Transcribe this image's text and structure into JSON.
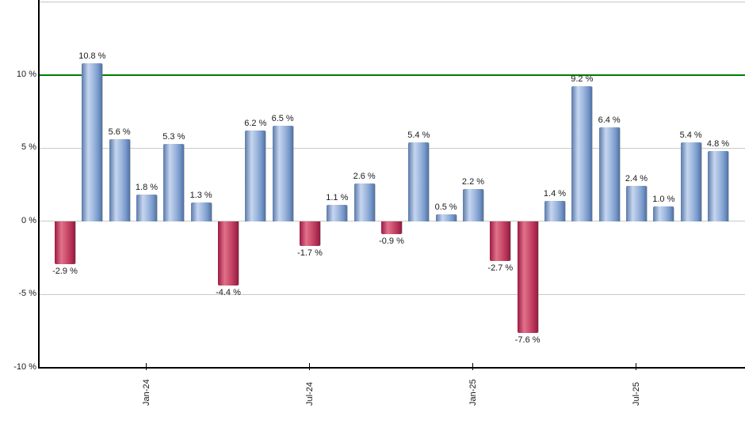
{
  "chart_data": {
    "type": "bar",
    "title": "",
    "unit": "%",
    "values": [
      -2.9,
      10.8,
      5.6,
      1.8,
      5.3,
      1.3,
      -4.4,
      6.2,
      6.5,
      -1.7,
      1.1,
      2.6,
      -0.9,
      5.4,
      0.5,
      2.2,
      -2.7,
      -7.6,
      1.4,
      9.2,
      6.4,
      2.4,
      1.0,
      5.4,
      4.8
    ],
    "value_labels": [
      "-2.9 %",
      "10.8 %",
      "5.6 %",
      "1.8 %",
      "5.3 %",
      "1.3 %",
      "-4.4 %",
      "6.2 %",
      "6.5 %",
      "-1.7 %",
      "1.1 %",
      "2.6 %",
      "-0.9 %",
      "5.4 %",
      "0.5 %",
      "2.2 %",
      "-2.7 %",
      "-7.6 %",
      "1.4 %",
      "9.2 %",
      "6.4 %",
      "2.4 %",
      "1.0 %",
      "5.4 %",
      "4.8 %"
    ],
    "x_ticks": [
      {
        "index": 3,
        "label": "Jan-24"
      },
      {
        "index": 9,
        "label": "Jul-24"
      },
      {
        "index": 15,
        "label": "Jan-25"
      },
      {
        "index": 21,
        "label": "Jul-25"
      }
    ],
    "y_ticks": [
      {
        "value": 10,
        "label": "10 %"
      },
      {
        "value": 5,
        "label": "5 %"
      },
      {
        "value": 0,
        "label": "0 %"
      },
      {
        "value": -5,
        "label": "-5 %"
      },
      {
        "value": -10,
        "label": "-10 %"
      }
    ],
    "ylim": [
      -10,
      15
    ],
    "grid": true,
    "legend": "none",
    "reference_line": {
      "value": 10,
      "color": "#007f00"
    },
    "colors": {
      "positive_gradient": [
        "#5b7aa9",
        "#c6d6f0",
        "#9bb5dc",
        "#7396c9",
        "#50719f"
      ],
      "negative_gradient": [
        "#9c1a42",
        "#e1718b",
        "#cb4c6a",
        "#b12f55",
        "#8e1b3e"
      ],
      "gridline": "#c9c9c9",
      "axis": "#000000",
      "label_text": "#1a1a1a"
    }
  }
}
